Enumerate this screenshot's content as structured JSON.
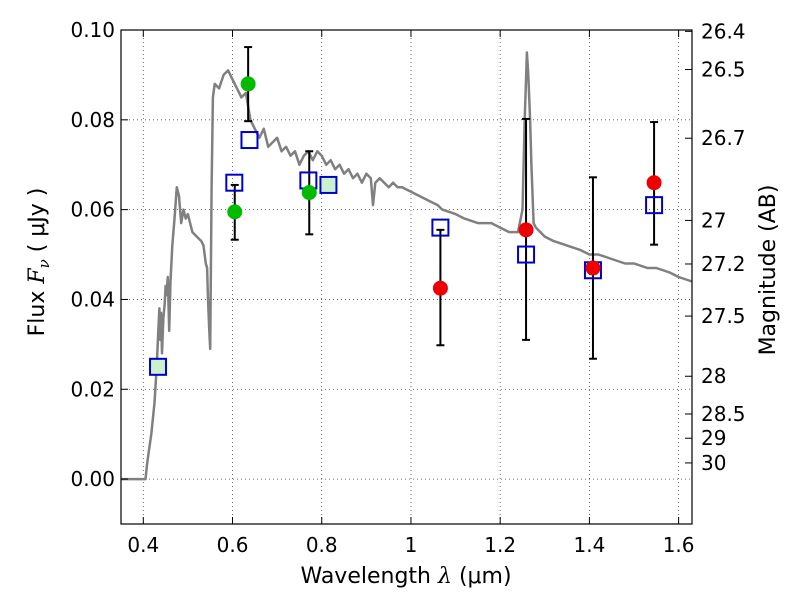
{
  "chart_data": {
    "type": "scatter",
    "title": "",
    "xlabel_text": "Wavelength",
    "xlabel_symbol": "λ",
    "xlabel_unit": "(μm)",
    "ylabel_text": "Flux",
    "ylabel_symbol": "F",
    "ylabel_subscript": "ν",
    "ylabel_unit": "( μJy )",
    "ylabel_right": "Magnitude (AB)",
    "xlim": [
      0.35,
      1.63
    ],
    "ylim": [
      -0.01,
      0.1
    ],
    "grid": true,
    "legend": "none",
    "x_ticks": [
      {
        "value": 0.4,
        "label": "0.4"
      },
      {
        "value": 0.6,
        "label": "0.6"
      },
      {
        "value": 0.8,
        "label": "0.8"
      },
      {
        "value": 1.0,
        "label": "1"
      },
      {
        "value": 1.2,
        "label": "1.2"
      },
      {
        "value": 1.4,
        "label": "1.4"
      },
      {
        "value": 1.6,
        "label": "1.6"
      }
    ],
    "y_ticks": [
      {
        "value": 0.0,
        "label": "0.00"
      },
      {
        "value": 0.02,
        "label": "0.02"
      },
      {
        "value": 0.04,
        "label": "0.04"
      },
      {
        "value": 0.06,
        "label": "0.06"
      },
      {
        "value": 0.08,
        "label": "0.08"
      },
      {
        "value": 0.1,
        "label": "0.10"
      }
    ],
    "right_ticks": [
      {
        "flux": 0.0997,
        "label": "26.4"
      },
      {
        "flux": 0.0912,
        "label": "26.5"
      },
      {
        "flux": 0.0759,
        "label": "26.7"
      },
      {
        "flux": 0.0576,
        "label": "27"
      },
      {
        "flux": 0.0479,
        "label": "27.2"
      },
      {
        "flux": 0.0363,
        "label": "27.5"
      },
      {
        "flux": 0.0229,
        "label": "28"
      },
      {
        "flux": 0.0145,
        "label": "28.5"
      },
      {
        "flux": 0.0091,
        "label": "29"
      },
      {
        "flux": 0.0036,
        "label": "30"
      }
    ],
    "colors": {
      "sed_line": "#808080",
      "model_square": "#0000cc",
      "green_point": "#00bb00",
      "red_point": "#ee0000",
      "errorbar": "#000000",
      "grid": "#444444",
      "square_fill_green": "#ccf0cc"
    },
    "series": [
      {
        "kind": "line",
        "points": [
          [
            0.35,
            0.0
          ],
          [
            0.405,
            0.0
          ],
          [
            0.408,
            0.003
          ],
          [
            0.412,
            0.006
          ],
          [
            0.418,
            0.01
          ],
          [
            0.425,
            0.017
          ],
          [
            0.43,
            0.025
          ],
          [
            0.434,
            0.034
          ],
          [
            0.436,
            0.038
          ],
          [
            0.438,
            0.031
          ],
          [
            0.44,
            0.037
          ],
          [
            0.442,
            0.028
          ],
          [
            0.445,
            0.036
          ],
          [
            0.448,
            0.039
          ],
          [
            0.45,
            0.043
          ],
          [
            0.452,
            0.041
          ],
          [
            0.455,
            0.045
          ],
          [
            0.458,
            0.033
          ],
          [
            0.461,
            0.044
          ],
          [
            0.465,
            0.052
          ],
          [
            0.47,
            0.058
          ],
          [
            0.475,
            0.065
          ],
          [
            0.48,
            0.063
          ],
          [
            0.485,
            0.057
          ],
          [
            0.49,
            0.06
          ],
          [
            0.495,
            0.058
          ],
          [
            0.5,
            0.059
          ],
          [
            0.505,
            0.057
          ],
          [
            0.51,
            0.055
          ],
          [
            0.52,
            0.054
          ],
          [
            0.53,
            0.053
          ],
          [
            0.535,
            0.052
          ],
          [
            0.54,
            0.048
          ],
          [
            0.543,
            0.047
          ],
          [
            0.545,
            0.04
          ],
          [
            0.548,
            0.033
          ],
          [
            0.55,
            0.029
          ],
          [
            0.553,
            0.065
          ],
          [
            0.556,
            0.085
          ],
          [
            0.56,
            0.088
          ],
          [
            0.57,
            0.087
          ],
          [
            0.58,
            0.09
          ],
          [
            0.59,
            0.091
          ],
          [
            0.6,
            0.089
          ],
          [
            0.61,
            0.087
          ],
          [
            0.62,
            0.085
          ],
          [
            0.63,
            0.086
          ],
          [
            0.64,
            0.08
          ],
          [
            0.65,
            0.078
          ],
          [
            0.66,
            0.076
          ],
          [
            0.67,
            0.078
          ],
          [
            0.68,
            0.074
          ],
          [
            0.69,
            0.075
          ],
          [
            0.7,
            0.076
          ],
          [
            0.71,
            0.073
          ],
          [
            0.72,
            0.074
          ],
          [
            0.73,
            0.072
          ],
          [
            0.74,
            0.073
          ],
          [
            0.75,
            0.07
          ],
          [
            0.76,
            0.072
          ],
          [
            0.77,
            0.073
          ],
          [
            0.78,
            0.071
          ],
          [
            0.79,
            0.073
          ],
          [
            0.8,
            0.072
          ],
          [
            0.81,
            0.07
          ],
          [
            0.82,
            0.071
          ],
          [
            0.83,
            0.069
          ],
          [
            0.84,
            0.07
          ],
          [
            0.85,
            0.068
          ],
          [
            0.86,
            0.069
          ],
          [
            0.87,
            0.067
          ],
          [
            0.88,
            0.068
          ],
          [
            0.89,
            0.066
          ],
          [
            0.9,
            0.068
          ],
          [
            0.91,
            0.067
          ],
          [
            0.915,
            0.061
          ],
          [
            0.92,
            0.066
          ],
          [
            0.93,
            0.067
          ],
          [
            0.94,
            0.066
          ],
          [
            0.95,
            0.065
          ],
          [
            0.96,
            0.066
          ],
          [
            0.97,
            0.065
          ],
          [
            0.98,
            0.065
          ],
          [
            1.0,
            0.064
          ],
          [
            1.02,
            0.063
          ],
          [
            1.04,
            0.062
          ],
          [
            1.06,
            0.061
          ],
          [
            1.07,
            0.06
          ],
          [
            1.1,
            0.059
          ],
          [
            1.12,
            0.058
          ],
          [
            1.15,
            0.057
          ],
          [
            1.18,
            0.057
          ],
          [
            1.2,
            0.056
          ],
          [
            1.22,
            0.055
          ],
          [
            1.24,
            0.055
          ],
          [
            1.25,
            0.06
          ],
          [
            1.255,
            0.08
          ],
          [
            1.26,
            0.095
          ],
          [
            1.263,
            0.09
          ],
          [
            1.267,
            0.08
          ],
          [
            1.27,
            0.07
          ],
          [
            1.275,
            0.057
          ],
          [
            1.28,
            0.056
          ],
          [
            1.3,
            0.054
          ],
          [
            1.32,
            0.053
          ],
          [
            1.35,
            0.052
          ],
          [
            1.38,
            0.051
          ],
          [
            1.4,
            0.05
          ],
          [
            1.42,
            0.05
          ],
          [
            1.45,
            0.049
          ],
          [
            1.48,
            0.048
          ],
          [
            1.5,
            0.048
          ],
          [
            1.53,
            0.047
          ],
          [
            1.55,
            0.047
          ],
          [
            1.58,
            0.046
          ],
          [
            1.6,
            0.045
          ],
          [
            1.63,
            0.044
          ]
        ]
      },
      {
        "kind": "square",
        "points": [
          {
            "x": 0.433,
            "y": 0.025,
            "green": true
          },
          {
            "x": 0.604,
            "y": 0.066,
            "green": false
          },
          {
            "x": 0.638,
            "y": 0.0755,
            "green": false
          },
          {
            "x": 0.77,
            "y": 0.0665,
            "green": false
          },
          {
            "x": 0.815,
            "y": 0.0655,
            "green": true
          },
          {
            "x": 1.066,
            "y": 0.056,
            "green": false
          },
          {
            "x": 1.258,
            "y": 0.05,
            "green": false
          },
          {
            "x": 1.408,
            "y": 0.0465,
            "green": false
          },
          {
            "x": 1.545,
            "y": 0.061,
            "green": false
          }
        ]
      },
      {
        "kind": "green-dot",
        "points": [
          {
            "x": 0.605,
            "y": 0.0595
          },
          {
            "x": 0.635,
            "y": 0.088
          },
          {
            "x": 0.772,
            "y": 0.0638
          }
        ]
      },
      {
        "kind": "red-dot",
        "points": [
          {
            "x": 1.066,
            "y": 0.0425
          },
          {
            "x": 1.258,
            "y": 0.0555
          },
          {
            "x": 1.408,
            "y": 0.047
          },
          {
            "x": 1.545,
            "y": 0.066
          }
        ]
      },
      {
        "kind": "errorbar",
        "points": [
          {
            "x": 0.605,
            "low": 0.0533,
            "high": 0.0655
          },
          {
            "x": 0.635,
            "low": 0.0797,
            "high": 0.0962
          },
          {
            "x": 0.772,
            "low": 0.0545,
            "high": 0.073
          },
          {
            "x": 1.066,
            "low": 0.0298,
            "high": 0.0555
          },
          {
            "x": 1.258,
            "low": 0.031,
            "high": 0.0802
          },
          {
            "x": 1.408,
            "low": 0.0268,
            "high": 0.0672
          },
          {
            "x": 1.545,
            "low": 0.0522,
            "high": 0.0795
          }
        ]
      }
    ]
  }
}
